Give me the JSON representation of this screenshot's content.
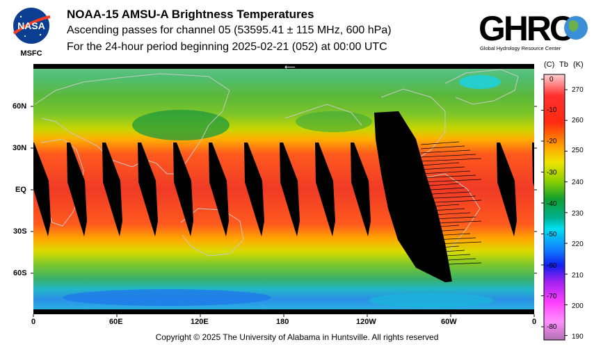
{
  "header": {
    "title": "NOAA-15 AMSU-A Brightness Temperatures",
    "subtitle": "Ascending passes for channel 05 (53595.41 ± 115 MHz, 600 hPa)",
    "period": "For the 24-hour period beginning 2025-02-21 (052) at 00:00 UTC"
  },
  "logos": {
    "nasa": {
      "text": "NASA",
      "sub": "MSFC"
    },
    "ghrc": {
      "text": "GHRC",
      "sub": "Global Hydrology Resource Center"
    }
  },
  "map": {
    "lat_labels": [
      "60N",
      "30N",
      "EQ",
      "30S",
      "60S"
    ],
    "lon_labels": [
      "0",
      "60E",
      "120E",
      "180",
      "120W",
      "60W",
      "0"
    ],
    "arrow_glyph": "⟵"
  },
  "colorbar": {
    "header_c": "(C)",
    "header_tb": "Tb",
    "header_k": "(K)",
    "celsius_labels": [
      "0",
      "-10",
      "-20",
      "-30",
      "-40",
      "-50",
      "-60",
      "-70",
      "-80"
    ],
    "kelvin_labels": [
      "270",
      "260",
      "250",
      "240",
      "230",
      "220",
      "210",
      "200",
      "190"
    ]
  },
  "footer": {
    "copyright": "Copyright © 2025 The University of Alabama in Huntsville.  All rights reserved"
  },
  "colors": {
    "swath_gap": "#000000",
    "coastline": "#c8c8c8"
  }
}
